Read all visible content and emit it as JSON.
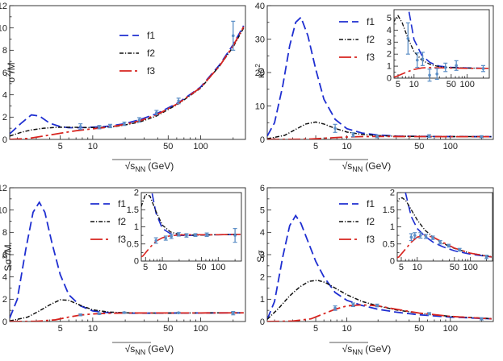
{
  "figure": {
    "legend_labels": [
      "f1",
      "f2",
      "f3"
    ],
    "series_colors": {
      "f1": "#1f2fd1",
      "f2": "#111111",
      "f3": "#d8241f"
    },
    "data_color": "#5b8ec6"
  },
  "chart_data": [
    {
      "id": "p1",
      "type": "line",
      "xscale": "log",
      "xlim": [
        1.7,
        260
      ],
      "ylim": [
        0,
        12
      ],
      "xticks": [
        5,
        10,
        50,
        100
      ],
      "yticks": [
        0,
        2,
        4,
        6,
        8,
        10,
        12
      ],
      "ylabel_main": "σ",
      "ylabel_sup": "2",
      "ylabel_rest": "/M",
      "xlabel_main": "√s",
      "xlabel_sub": "NN",
      "xlabel_unit": "(GeV)",
      "legend_position": "top-left",
      "series": [
        {
          "name": "f1",
          "x": [
            1.7,
            2.2,
            2.7,
            3.2,
            4,
            5,
            6,
            7.7,
            9,
            11.5,
            14.5,
            19.6,
            27,
            39,
            62.4,
            100,
            150,
            200,
            250
          ],
          "y": [
            0.5,
            1.5,
            2.2,
            2.1,
            1.45,
            1.15,
            1.05,
            1.05,
            1.08,
            1.12,
            1.2,
            1.4,
            1.75,
            2.3,
            3.3,
            4.7,
            6.7,
            8.5,
            10.2
          ]
        },
        {
          "name": "f2",
          "x": [
            1.7,
            2.2,
            2.7,
            3.5,
            4.5,
            5.5,
            7,
            9,
            12,
            16,
            20,
            27,
            39,
            62.4,
            100,
            150,
            200,
            250
          ],
          "y": [
            0.3,
            0.65,
            0.85,
            1.0,
            1.08,
            1.1,
            1.08,
            1.06,
            1.08,
            1.15,
            1.3,
            1.55,
            2.1,
            3.2,
            4.6,
            6.6,
            8.3,
            10.0
          ]
        },
        {
          "name": "f3",
          "x": [
            1.7,
            2.5,
            3.5,
            5,
            7,
            10,
            14,
            20,
            27,
            39,
            62.4,
            100,
            150,
            200,
            250
          ],
          "y": [
            0.0,
            0.08,
            0.3,
            0.55,
            0.78,
            0.95,
            1.1,
            1.35,
            1.65,
            2.2,
            3.25,
            4.65,
            6.6,
            8.4,
            10.1
          ]
        }
      ],
      "points": {
        "x": [
          7.7,
          11.5,
          14.5,
          19.6,
          27,
          39,
          62.4,
          200
        ],
        "y": [
          1.15,
          1.1,
          1.2,
          1.4,
          1.75,
          2.4,
          3.45,
          9.3
        ],
        "err": [
          0.25,
          0.15,
          0.15,
          0.15,
          0.2,
          0.2,
          0.25,
          1.3
        ]
      }
    },
    {
      "id": "p2",
      "type": "line",
      "xscale": "log",
      "xlim": [
        1.7,
        260
      ],
      "ylim": [
        0,
        40
      ],
      "xticks": [
        5,
        10,
        50,
        100
      ],
      "yticks": [
        0,
        10,
        20,
        30,
        40
      ],
      "ylabel_main": "κσ",
      "ylabel_sup": "2",
      "ylabel_rest": "",
      "xlabel_main": "√s",
      "xlabel_sub": "NN",
      "xlabel_unit": "(GeV)",
      "legend_position": "top-center",
      "series": [
        {
          "name": "f1",
          "x": [
            1.7,
            2,
            2.4,
            2.8,
            3.2,
            3.6,
            4.2,
            5,
            6,
            7.7,
            10,
            14,
            20,
            30,
            50,
            100,
            250
          ],
          "y": [
            1.0,
            5.0,
            16.0,
            28.0,
            35.0,
            36.5,
            31.0,
            21.0,
            12.0,
            6.0,
            3.2,
            1.9,
            1.3,
            1.0,
            0.9,
            0.85,
            0.82
          ]
        },
        {
          "name": "f2",
          "x": [
            1.7,
            2.5,
            3.2,
            4,
            5,
            6,
            7.7,
            10,
            14,
            20,
            30,
            50,
            100,
            250
          ],
          "y": [
            0.2,
            1.2,
            3.0,
            4.6,
            5.2,
            4.6,
            3.3,
            2.2,
            1.5,
            1.15,
            0.95,
            0.88,
            0.84,
            0.82
          ]
        },
        {
          "name": "f3",
          "x": [
            1.7,
            3,
            4.5,
            6,
            7.7,
            10,
            14,
            20,
            30,
            50,
            100,
            250
          ],
          "y": [
            0.0,
            0.02,
            0.12,
            0.35,
            0.55,
            0.72,
            0.85,
            0.88,
            0.86,
            0.84,
            0.82,
            0.82
          ]
        }
      ],
      "points": {
        "x": [
          7.7,
          11.5,
          19.6,
          62.4,
          200
        ],
        "y": [
          3.3,
          1.4,
          0.9,
          1.0,
          0.8
        ],
        "err": [
          1.2,
          0.6,
          0.4,
          0.4,
          0.3
        ]
      },
      "inset": {
        "xlim": [
          4.2,
          260
        ],
        "ylim": [
          0,
          5.7
        ],
        "xticks": [
          5,
          10,
          50,
          100
        ],
        "yticks": [
          0,
          1,
          2,
          3,
          4,
          5
        ],
        "points": {
          "x": [
            7.7,
            11.5,
            14.5,
            19.6,
            27,
            39,
            62.4,
            200
          ],
          "y": [
            3.3,
            1.5,
            1.6,
            0.25,
            0.35,
            0.9,
            1.05,
            0.8
          ],
          "err": [
            1.3,
            0.6,
            0.55,
            0.5,
            0.45,
            0.35,
            0.4,
            0.25
          ]
        }
      }
    },
    {
      "id": "p3",
      "type": "line",
      "xscale": "log",
      "xlim": [
        1.7,
        260
      ],
      "ylim": [
        0,
        12
      ],
      "xticks": [
        5,
        10,
        50,
        100
      ],
      "yticks": [
        0,
        2,
        4,
        6,
        8,
        10,
        12
      ],
      "ylabel_main": "Sσ",
      "ylabel_sup": "3",
      "ylabel_rest": "/M",
      "xlabel_main": "√s",
      "xlabel_sub": "NN",
      "xlabel_unit": "(GeV)",
      "legend_position": "top-center",
      "series": [
        {
          "name": "f1",
          "x": [
            1.7,
            2,
            2.4,
            2.8,
            3.2,
            3.6,
            4.2,
            5,
            6,
            7.7,
            10,
            14,
            20,
            30,
            50,
            100,
            250
          ],
          "y": [
            0.3,
            2.0,
            6.5,
            9.8,
            10.7,
            9.8,
            7.0,
            4.2,
            2.4,
            1.4,
            0.95,
            0.8,
            0.75,
            0.75,
            0.76,
            0.77,
            0.78
          ]
        },
        {
          "name": "f2",
          "x": [
            1.7,
            2.5,
            3.2,
            4,
            5,
            6,
            7.7,
            10,
            14,
            20,
            30,
            50,
            100,
            250
          ],
          "y": [
            0.05,
            0.4,
            0.95,
            1.5,
            1.95,
            1.9,
            1.45,
            1.05,
            0.85,
            0.78,
            0.76,
            0.76,
            0.77,
            0.78
          ]
        },
        {
          "name": "f3",
          "x": [
            1.7,
            3,
            4.5,
            6,
            7.7,
            10,
            14,
            20,
            30,
            50,
            100,
            250
          ],
          "y": [
            0.0,
            0.02,
            0.15,
            0.4,
            0.58,
            0.68,
            0.74,
            0.76,
            0.77,
            0.77,
            0.77,
            0.78
          ]
        }
      ],
      "points": {
        "x": [
          7.7,
          11.5,
          19.6,
          62.4,
          200
        ],
        "y": [
          0.6,
          0.7,
          0.8,
          0.78,
          0.75
        ],
        "err": [
          0.08,
          0.06,
          0.05,
          0.05,
          0.15
        ]
      },
      "inset": {
        "xlim": [
          4.2,
          260
        ],
        "ylim": [
          0,
          2.0
        ],
        "xticks": [
          5,
          10,
          50,
          100
        ],
        "yticks": [
          0.0,
          0.5,
          1.0,
          1.5,
          2.0
        ],
        "points": {
          "x": [
            7.7,
            11.5,
            14.5,
            19.6,
            27,
            39,
            62.4,
            200
          ],
          "y": [
            0.6,
            0.67,
            0.72,
            0.78,
            0.75,
            0.76,
            0.77,
            0.75
          ],
          "err": [
            0.08,
            0.06,
            0.06,
            0.05,
            0.05,
            0.04,
            0.05,
            0.2
          ]
        }
      }
    },
    {
      "id": "p4",
      "type": "line",
      "xscale": "log",
      "xlim": [
        1.7,
        260
      ],
      "ylim": [
        0,
        6
      ],
      "xticks": [
        5,
        10,
        50,
        100
      ],
      "yticks": [
        0,
        1,
        2,
        3,
        4,
        5,
        6
      ],
      "ylabel_main": "Sσ",
      "ylabel_sup": "",
      "ylabel_rest": "",
      "xlabel_main": "√s",
      "xlabel_sub": "NN",
      "xlabel_unit": "(GeV)",
      "legend_position": "top-center",
      "series": [
        {
          "name": "f1",
          "x": [
            1.7,
            2,
            2.4,
            2.8,
            3.2,
            3.6,
            4.2,
            5,
            6,
            7.7,
            10,
            14,
            20,
            30,
            50,
            100,
            250
          ],
          "y": [
            0.1,
            0.9,
            2.9,
            4.3,
            4.75,
            4.4,
            3.6,
            2.7,
            2.0,
            1.3,
            0.95,
            0.72,
            0.55,
            0.42,
            0.3,
            0.2,
            0.12
          ]
        },
        {
          "name": "f2",
          "x": [
            1.7,
            2.2,
            2.8,
            3.5,
            4.3,
            5.2,
            6.2,
            7.7,
            10,
            14,
            20,
            30,
            50,
            100,
            250
          ],
          "y": [
            0.1,
            0.6,
            1.15,
            1.55,
            1.8,
            1.85,
            1.75,
            1.5,
            1.2,
            0.9,
            0.7,
            0.52,
            0.37,
            0.23,
            0.13
          ]
        },
        {
          "name": "f3",
          "x": [
            1.7,
            3,
            4.5,
            6,
            7.7,
            10,
            14,
            20,
            30,
            50,
            100,
            250
          ],
          "y": [
            0.0,
            0.02,
            0.12,
            0.35,
            0.55,
            0.7,
            0.75,
            0.7,
            0.55,
            0.38,
            0.23,
            0.12
          ]
        }
      ],
      "points": {
        "x": [
          7.7,
          11.5,
          19.6,
          62.4,
          200
        ],
        "y": [
          0.6,
          0.75,
          0.72,
          0.35,
          0.12
        ],
        "err": [
          0.1,
          0.08,
          0.06,
          0.05,
          0.05
        ]
      },
      "inset": {
        "xlim": [
          4.2,
          260
        ],
        "ylim": [
          0,
          2.0
        ],
        "xticks": [
          5,
          10,
          50,
          100
        ],
        "yticks": [
          0.0,
          0.5,
          1.0,
          1.5,
          2.0
        ],
        "points": {
          "x": [
            7.7,
            9,
            11.5,
            14.5,
            19.6,
            27,
            39,
            62.4,
            200
          ],
          "y": [
            0.7,
            0.75,
            0.75,
            0.72,
            0.68,
            0.55,
            0.45,
            0.33,
            0.12
          ],
          "err": [
            0.1,
            0.08,
            0.08,
            0.06,
            0.05,
            0.05,
            0.04,
            0.04,
            0.05
          ]
        }
      }
    }
  ]
}
